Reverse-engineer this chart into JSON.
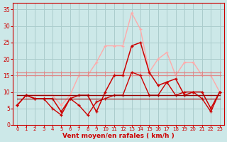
{
  "x": [
    0,
    1,
    2,
    3,
    4,
    5,
    6,
    7,
    8,
    9,
    10,
    11,
    12,
    13,
    14,
    15,
    16,
    17,
    18,
    19,
    20,
    21,
    22,
    23
  ],
  "line_pink": [
    6,
    9,
    9,
    9,
    9,
    6,
    9,
    15,
    15,
    19,
    24,
    24,
    24,
    34,
    29,
    16,
    20,
    22,
    15,
    19,
    19,
    15,
    15,
    10
  ],
  "line_med1": [
    16,
    16,
    16,
    16,
    16,
    16,
    16,
    16,
    16,
    16,
    16,
    16,
    16,
    16,
    16,
    16,
    16,
    16,
    16,
    16,
    16,
    16,
    16,
    16
  ],
  "line_med2": [
    15,
    15,
    15,
    15,
    15,
    15,
    15,
    15,
    15,
    15,
    15,
    15,
    15,
    15,
    15,
    15,
    15,
    15,
    15,
    15,
    15,
    15,
    15,
    15
  ],
  "line_dark1": [
    6,
    9,
    8,
    8,
    8,
    4,
    8,
    9,
    9,
    4,
    10,
    15,
    15,
    24,
    25,
    16,
    12,
    13,
    14,
    9,
    10,
    10,
    5,
    10
  ],
  "line_dark2": [
    6,
    9,
    8,
    8,
    5,
    3,
    8,
    6,
    3,
    7,
    8,
    9,
    9,
    16,
    15,
    9,
    9,
    13,
    9,
    10,
    10,
    8,
    4,
    10
  ],
  "line_flat1": [
    9,
    9,
    9,
    9,
    9,
    9,
    9,
    9,
    9,
    9,
    9,
    9,
    9,
    9,
    9,
    9,
    9,
    9,
    9,
    9,
    9,
    9,
    9,
    9
  ],
  "line_flat2": [
    8,
    8,
    8,
    8,
    8,
    8,
    8,
    8,
    8,
    8,
    8,
    8,
    8,
    8,
    8,
    8,
    8,
    8,
    8,
    8,
    8,
    8,
    8,
    8
  ],
  "bg_color": "#cce8e8",
  "grid_color": "#aacccc",
  "color_pink": "#ffaaaa",
  "color_med": "#dd8888",
  "color_dark": "#cc0000",
  "color_darkest": "#990000",
  "xlabel": "Vent moyen/en rafales ( km/h )",
  "ylim": [
    0,
    37
  ],
  "xlim": [
    -0.5,
    23.5
  ],
  "yticks": [
    0,
    5,
    10,
    15,
    20,
    25,
    30,
    35
  ],
  "xticks": [
    0,
    1,
    2,
    3,
    4,
    5,
    6,
    7,
    8,
    9,
    10,
    11,
    12,
    13,
    14,
    15,
    16,
    17,
    18,
    19,
    20,
    21,
    22,
    23
  ]
}
